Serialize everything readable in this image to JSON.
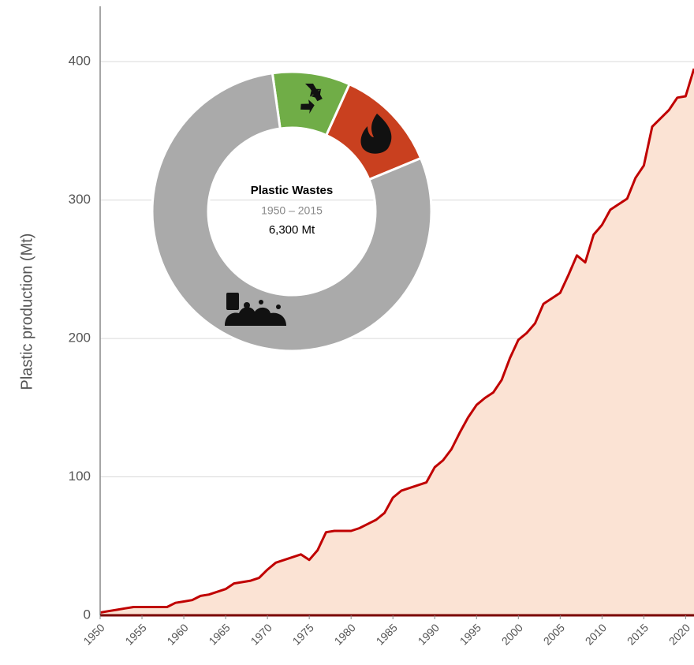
{
  "chart_data": [
    {
      "type": "area",
      "y_label": "Plastic production (Mt)",
      "x": [
        1950,
        1951,
        1952,
        1953,
        1954,
        1955,
        1956,
        1957,
        1958,
        1959,
        1960,
        1961,
        1962,
        1963,
        1964,
        1965,
        1966,
        1967,
        1968,
        1969,
        1970,
        1971,
        1972,
        1973,
        1974,
        1975,
        1976,
        1977,
        1978,
        1979,
        1980,
        1981,
        1982,
        1983,
        1984,
        1985,
        1986,
        1987,
        1988,
        1989,
        1990,
        1991,
        1992,
        1993,
        1994,
        1995,
        1996,
        1997,
        1998,
        1999,
        2000,
        2001,
        2002,
        2003,
        2004,
        2005,
        2006,
        2007,
        2008,
        2009,
        2010,
        2011,
        2012,
        2013,
        2014,
        2015,
        2016,
        2017,
        2018,
        2019,
        2020,
        2021
      ],
      "values": [
        2,
        3,
        4,
        5,
        6,
        6,
        6,
        6,
        6,
        9,
        10,
        11,
        14,
        15,
        17,
        19,
        23,
        24,
        25,
        27,
        33,
        38,
        40,
        42,
        44,
        40,
        47,
        60,
        61,
        61,
        61,
        63,
        66,
        69,
        74,
        85,
        90,
        92,
        94,
        96,
        107,
        112,
        120,
        132,
        143,
        152,
        157,
        161,
        170,
        186,
        199,
        204,
        211,
        225,
        229,
        233,
        246,
        260,
        255,
        275,
        282,
        293,
        297,
        301,
        316,
        325,
        353,
        359,
        365,
        374,
        375,
        395
      ],
      "line_color": "#c00000",
      "fill_color": "#fbe3d4",
      "xlim": [
        1950,
        2021
      ],
      "xticks": [
        1950,
        1955,
        1960,
        1965,
        1970,
        1975,
        1980,
        1985,
        1990,
        1995,
        2000,
        2005,
        2010,
        2015,
        2020
      ],
      "ylim": [
        0,
        440
      ],
      "yticks": [
        0,
        100,
        200,
        300,
        400
      ],
      "grid": true
    },
    {
      "type": "donut",
      "title": "Plastic Wastes",
      "subtitle": "1950 – 2015",
      "total": "6,300 Mt",
      "values": [
        9,
        12,
        79
      ],
      "colors": [
        "#70ad47",
        "#c9401f",
        "#aaaaaa"
      ]
    }
  ]
}
